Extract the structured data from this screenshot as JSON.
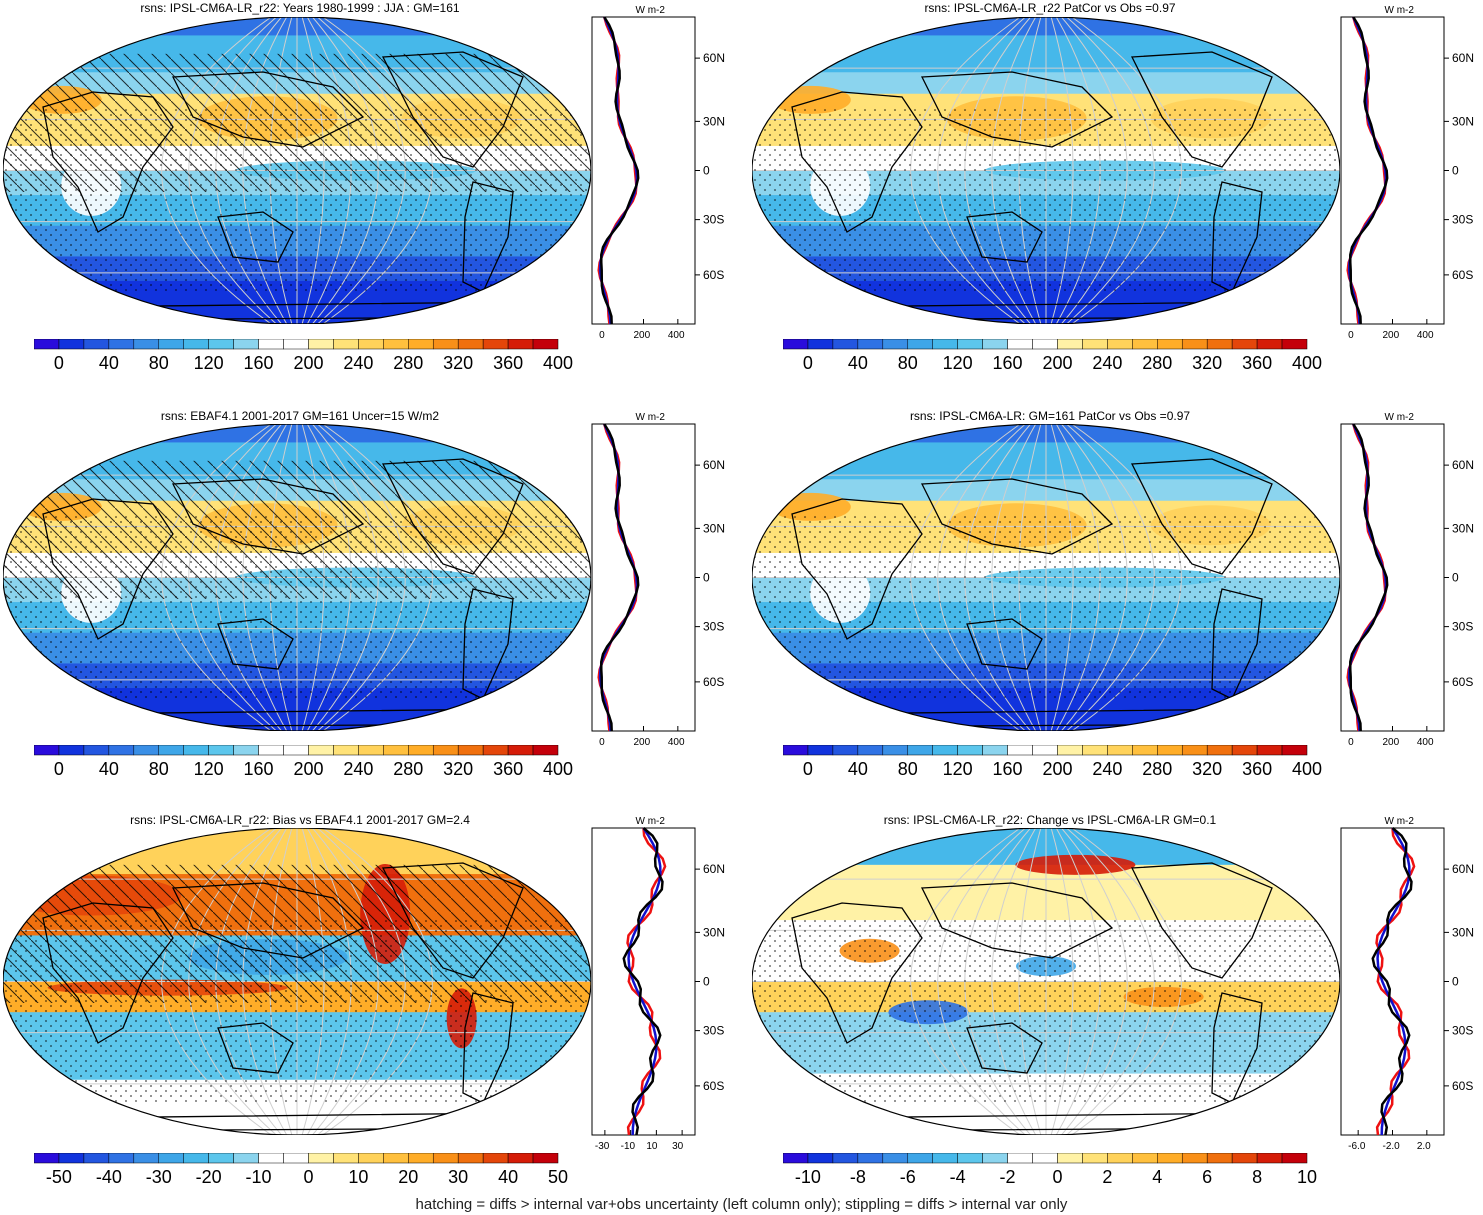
{
  "panels": [
    {
      "id": "p1",
      "title": "rsns: IPSL-CM6A-LR_r22: Years 1980-1999 : JJA : GM=161",
      "kind": "abs",
      "hatch": true,
      "colorbar": {
        "labels": [
          "0",
          "40",
          "80",
          "120",
          "160",
          "200",
          "240",
          "280",
          "320",
          "360",
          "400"
        ]
      },
      "profile": {
        "units": "W m-2",
        "xticks": [
          "0",
          "200",
          "400"
        ],
        "yticks": [
          "60N",
          "30N",
          "0",
          "30S",
          "60S"
        ]
      }
    },
    {
      "id": "p2",
      "title": "rsns: IPSL-CM6A-LR_r22 PatCor vs Obs =0.97",
      "kind": "abs",
      "hatch": false,
      "colorbar": {
        "labels": [
          "0",
          "40",
          "80",
          "120",
          "160",
          "200",
          "240",
          "280",
          "320",
          "360",
          "400"
        ]
      },
      "profile": {
        "units": "W m-2",
        "xticks": [
          "0",
          "200",
          "400"
        ],
        "yticks": [
          "60N",
          "30N",
          "0",
          "30S",
          "60S"
        ]
      }
    },
    {
      "id": "p3",
      "title": "rsns: EBAF4.1 2001-2017 GM=161 Uncer=15 W/m2",
      "kind": "abs",
      "hatch": true,
      "colorbar": {
        "labels": [
          "0",
          "40",
          "80",
          "120",
          "160",
          "200",
          "240",
          "280",
          "320",
          "360",
          "400"
        ]
      },
      "profile": {
        "units": "W m-2",
        "xticks": [
          "0",
          "200",
          "400"
        ],
        "yticks": [
          "60N",
          "30N",
          "0",
          "30S",
          "60S"
        ]
      }
    },
    {
      "id": "p4",
      "title": "rsns: IPSL-CM6A-LR: GM=161 PatCor vs Obs =0.97",
      "kind": "abs",
      "hatch": false,
      "colorbar": {
        "labels": [
          "0",
          "40",
          "80",
          "120",
          "160",
          "200",
          "240",
          "280",
          "320",
          "360",
          "400"
        ]
      },
      "profile": {
        "units": "W m-2",
        "xticks": [
          "0",
          "200",
          "400"
        ],
        "yticks": [
          "60N",
          "30N",
          "0",
          "30S",
          "60S"
        ]
      }
    },
    {
      "id": "p5",
      "title": "rsns: IPSL-CM6A-LR_r22: Bias vs EBAF4.1 2001-2017 GM=2.4",
      "kind": "bias",
      "hatch": true,
      "colorbar": {
        "labels": [
          "-50",
          "-40",
          "-30",
          "-20",
          "-10",
          "0",
          "10",
          "20",
          "30",
          "40",
          "50"
        ]
      },
      "profile": {
        "units": "W m-2",
        "xticks": [
          "-30",
          "-10",
          "10",
          "30"
        ],
        "yticks": [
          "60N",
          "30N",
          "0",
          "30S",
          "60S"
        ]
      }
    },
    {
      "id": "p6",
      "title": "rsns: IPSL-CM6A-LR_r22: Change vs IPSL-CM6A-LR GM=0.1",
      "kind": "change",
      "hatch": false,
      "colorbar": {
        "labels": [
          "-10",
          "-8",
          "-6",
          "-4",
          "-2",
          "0",
          "2",
          "4",
          "6",
          "8",
          "10"
        ]
      },
      "profile": {
        "units": "W m-2",
        "xticks": [
          "-6.0",
          "-2.0",
          "2.0"
        ],
        "yticks": [
          "60N",
          "30N",
          "0",
          "30S",
          "60S"
        ]
      }
    }
  ],
  "colors": {
    "palette": [
      "#2a0cdc",
      "#1133dd",
      "#2356e0",
      "#2f72e4",
      "#3a8fe6",
      "#3ea6e8",
      "#46b8ea",
      "#5cc6ec",
      "#8bd4ee",
      "#ffffff",
      "#ffffff",
      "#fff2a6",
      "#ffe278",
      "#ffd25a",
      "#ffc03e",
      "#ffad28",
      "#f99018",
      "#f0700e",
      "#e4460a",
      "#d51c08",
      "#c4000a"
    ],
    "line_red": "#ee1111",
    "line_blue": "#1111cc",
    "line_black": "#000000"
  },
  "footer": "hatching = diffs > internal var+obs uncertainty (left column only); stippling = diffs > internal var only"
}
